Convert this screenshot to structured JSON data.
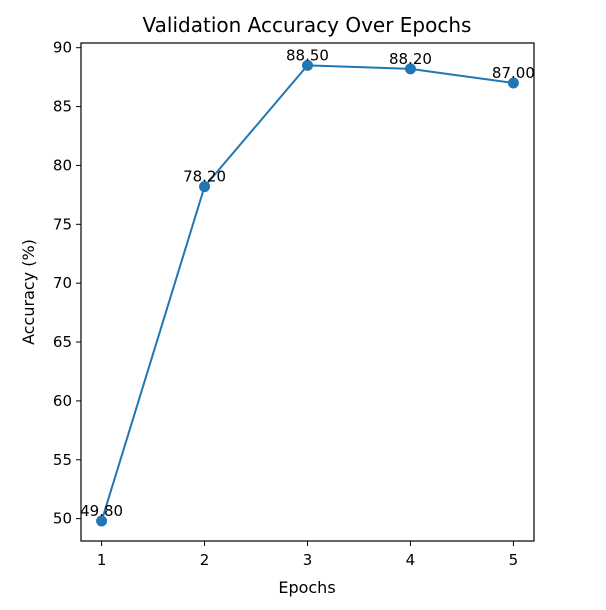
{
  "chart_data": {
    "type": "line",
    "title": "Validation Accuracy Over Epochs",
    "xlabel": "Epochs",
    "ylabel": "Accuracy (%)",
    "x": [
      1,
      2,
      3,
      4,
      5
    ],
    "x_ticks": [
      "1",
      "2",
      "3",
      "4",
      "5"
    ],
    "y_ticks": [
      "50",
      "55",
      "60",
      "65",
      "70",
      "75",
      "80",
      "85",
      "90"
    ],
    "xlim": [
      0.8,
      5.2
    ],
    "ylim": [
      48.1,
      90.4
    ],
    "series": [
      {
        "values": [
          49.8,
          78.2,
          88.5,
          88.2,
          87.0
        ],
        "labels": [
          "49.80",
          "78.20",
          "88.50",
          "88.20",
          "87.00"
        ],
        "color": "#1f77b4",
        "marker": "circle"
      }
    ],
    "grid": false,
    "legend": "none"
  }
}
